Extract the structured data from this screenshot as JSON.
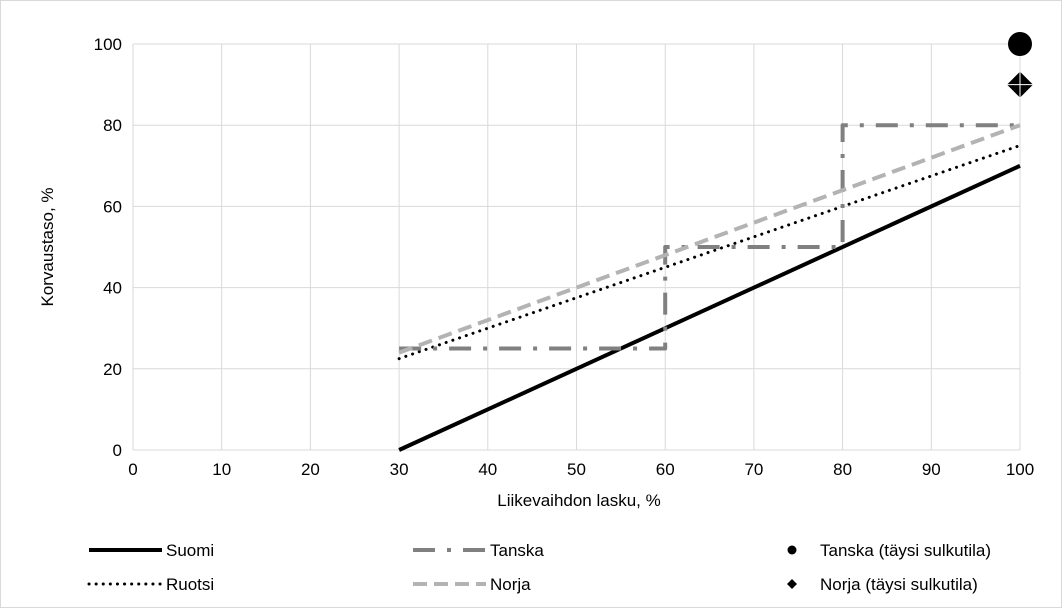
{
  "chart_data": {
    "type": "line",
    "xlabel": "Liikevaihdon lasku, %",
    "ylabel": "Korvaustaso, %",
    "xlim": [
      0,
      100
    ],
    "ylim": [
      0,
      100
    ],
    "x_ticks": [
      0,
      10,
      20,
      30,
      40,
      50,
      60,
      70,
      80,
      90,
      100
    ],
    "y_ticks": [
      0,
      20,
      40,
      60,
      80,
      100
    ],
    "grid": "both",
    "legend_position": "bottom",
    "series": [
      {
        "name": "Suomi",
        "style": "solid",
        "color": "#000000",
        "points": [
          [
            30,
            0
          ],
          [
            100,
            70
          ]
        ]
      },
      {
        "name": "Ruotsi",
        "style": "dotted",
        "color": "#000000",
        "points": [
          [
            30,
            22.5
          ],
          [
            100,
            75
          ]
        ]
      },
      {
        "name": "Tanska",
        "style": "dash-dot",
        "color": "#808080",
        "points": [
          [
            30,
            25
          ],
          [
            60,
            25
          ],
          [
            60,
            50
          ],
          [
            80,
            50
          ],
          [
            80,
            80
          ],
          [
            100,
            80
          ]
        ]
      },
      {
        "name": "Norja",
        "style": "dashed",
        "color": "#b3b3b3",
        "points": [
          [
            30,
            24
          ],
          [
            100,
            80
          ]
        ]
      }
    ],
    "markers": [
      {
        "name": "Tanska (täysi sulkutila)",
        "shape": "circle",
        "color": "#000000",
        "x": 100,
        "y": 100
      },
      {
        "name": "Norja (täysi sulkutila)",
        "shape": "diamond",
        "color": "#000000",
        "x": 100,
        "y": 90
      }
    ]
  }
}
